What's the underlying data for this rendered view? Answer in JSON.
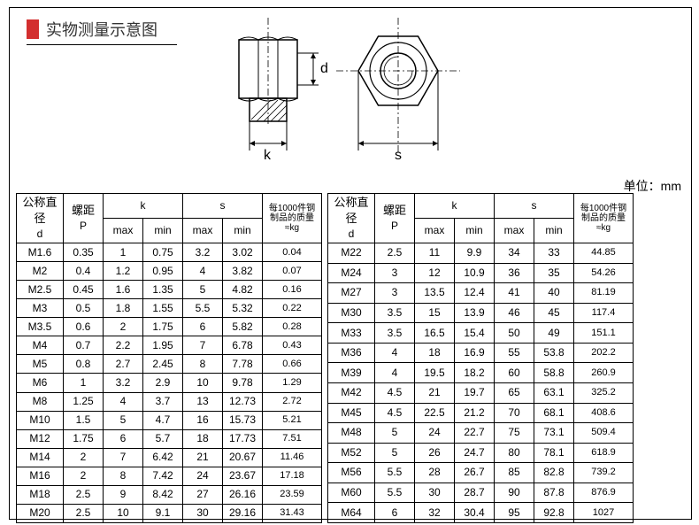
{
  "title": "实物测量示意图",
  "unit_label": "单位：mm",
  "diagram_labels": {
    "d": "d",
    "k": "k",
    "s": "s"
  },
  "header": {
    "d_top": "公称直径",
    "d_bot": "d",
    "p_top": "螺距",
    "p_bot": "P",
    "k": "k",
    "s": "s",
    "max": "max",
    "min": "min",
    "wt_l1": "每1000件钢",
    "wt_l2": "制品的质量",
    "wt_l3": "≈kg"
  },
  "left_rows": [
    [
      "M1.6",
      "0.35",
      "1",
      "0.75",
      "3.2",
      "3.02",
      "0.04"
    ],
    [
      "M2",
      "0.4",
      "1.2",
      "0.95",
      "4",
      "3.82",
      "0.07"
    ],
    [
      "M2.5",
      "0.45",
      "1.6",
      "1.35",
      "5",
      "4.82",
      "0.16"
    ],
    [
      "M3",
      "0.5",
      "1.8",
      "1.55",
      "5.5",
      "5.32",
      "0.22"
    ],
    [
      "M3.5",
      "0.6",
      "2",
      "1.75",
      "6",
      "5.82",
      "0.28"
    ],
    [
      "M4",
      "0.7",
      "2.2",
      "1.95",
      "7",
      "6.78",
      "0.43"
    ],
    [
      "M5",
      "0.8",
      "2.7",
      "2.45",
      "8",
      "7.78",
      "0.66"
    ],
    [
      "M6",
      "1",
      "3.2",
      "2.9",
      "10",
      "9.78",
      "1.29"
    ],
    [
      "M8",
      "1.25",
      "4",
      "3.7",
      "13",
      "12.73",
      "2.72"
    ],
    [
      "M10",
      "1.5",
      "5",
      "4.7",
      "16",
      "15.73",
      "5.21"
    ],
    [
      "M12",
      "1.75",
      "6",
      "5.7",
      "18",
      "17.73",
      "7.51"
    ],
    [
      "M14",
      "2",
      "7",
      "6.42",
      "21",
      "20.67",
      "11.46"
    ],
    [
      "M16",
      "2",
      "8",
      "7.42",
      "24",
      "23.67",
      "17.18"
    ],
    [
      "M18",
      "2.5",
      "9",
      "8.42",
      "27",
      "26.16",
      "23.59"
    ],
    [
      "M20",
      "2.5",
      "10",
      "9.1",
      "30",
      "29.16",
      "31.43"
    ]
  ],
  "right_rows": [
    [
      "M22",
      "2.5",
      "11",
      "9.9",
      "34",
      "33",
      "44.85"
    ],
    [
      "M24",
      "3",
      "12",
      "10.9",
      "36",
      "35",
      "54.26"
    ],
    [
      "M27",
      "3",
      "13.5",
      "12.4",
      "41",
      "40",
      "81.19"
    ],
    [
      "M30",
      "3.5",
      "15",
      "13.9",
      "46",
      "45",
      "117.4"
    ],
    [
      "M33",
      "3.5",
      "16.5",
      "15.4",
      "50",
      "49",
      "151.1"
    ],
    [
      "M36",
      "4",
      "18",
      "16.9",
      "55",
      "53.8",
      "202.2"
    ],
    [
      "M39",
      "4",
      "19.5",
      "18.2",
      "60",
      "58.8",
      "260.9"
    ],
    [
      "M42",
      "4.5",
      "21",
      "19.7",
      "65",
      "63.1",
      "325.2"
    ],
    [
      "M45",
      "4.5",
      "22.5",
      "21.2",
      "70",
      "68.1",
      "408.6"
    ],
    [
      "M48",
      "5",
      "24",
      "22.7",
      "75",
      "73.1",
      "509.4"
    ],
    [
      "M52",
      "5",
      "26",
      "24.7",
      "80",
      "78.1",
      "618.9"
    ],
    [
      "M56",
      "5.5",
      "28",
      "26.7",
      "85",
      "82.8",
      "739.2"
    ],
    [
      "M60",
      "5.5",
      "30",
      "28.7",
      "90",
      "87.8",
      "876.9"
    ],
    [
      "M64",
      "6",
      "32",
      "30.4",
      "95",
      "92.8",
      "1027"
    ]
  ],
  "col_widths": {
    "d": 48,
    "p": 40,
    "sub": 40,
    "wt": 62
  },
  "colors": {
    "accent": "#d32f2f",
    "border": "#000000",
    "bg": "#ffffff"
  }
}
